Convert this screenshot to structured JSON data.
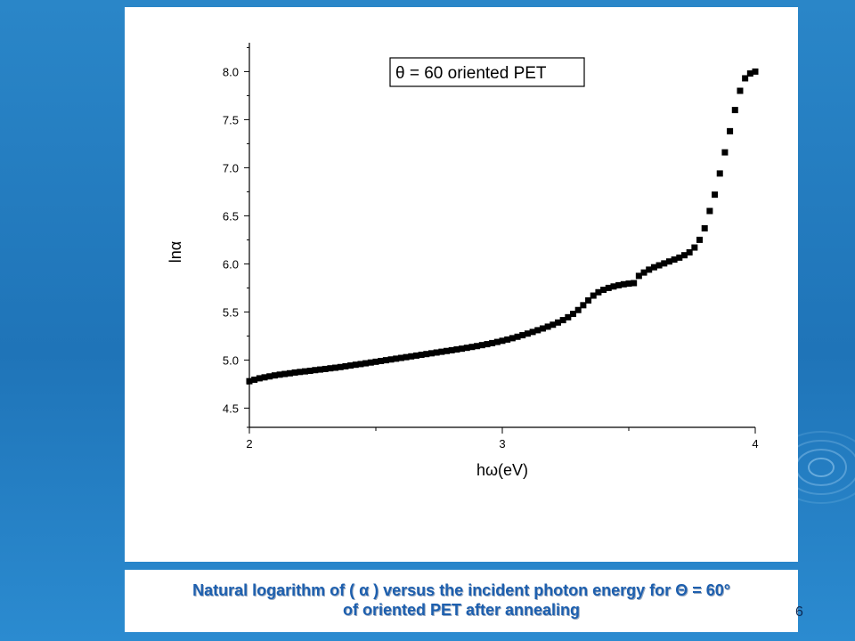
{
  "slide": {
    "number": "6",
    "caption_line1": "Natural logarithm of ( α ) versus the incident photon energy for Θ = 60°",
    "caption_line2": "of oriented PET after annealing"
  },
  "colors": {
    "background": "#2a86c8",
    "caption_text": "#1d5fae",
    "data_points": "#000000"
  },
  "chart_data": {
    "type": "scatter",
    "xlabel": "hω(eV)",
    "ylabel": "lnα",
    "xlim": [
      2,
      4
    ],
    "ylim": [
      4.3,
      8.3
    ],
    "x_ticks": [
      "2",
      "3",
      "4"
    ],
    "y_ticks": [
      "4.5",
      "5.0",
      "5.5",
      "6.0",
      "6.5",
      "7.0",
      "7.5",
      "8.0"
    ],
    "legend": {
      "label": "θ = 60 oriented PET",
      "placement": "top-center"
    },
    "grid": false,
    "series": [
      {
        "marker": "square",
        "x": [
          2.0,
          2.02,
          2.04,
          2.06,
          2.08,
          2.1,
          2.12,
          2.14,
          2.16,
          2.18,
          2.2,
          2.22,
          2.24,
          2.26,
          2.28,
          2.3,
          2.32,
          2.34,
          2.36,
          2.38,
          2.4,
          2.42,
          2.44,
          2.46,
          2.48,
          2.5,
          2.52,
          2.54,
          2.56,
          2.58,
          2.6,
          2.62,
          2.64,
          2.66,
          2.68,
          2.7,
          2.72,
          2.74,
          2.76,
          2.78,
          2.8,
          2.82,
          2.84,
          2.86,
          2.88,
          2.9,
          2.92,
          2.94,
          2.96,
          2.98,
          3.0,
          3.02,
          3.04,
          3.06,
          3.08,
          3.1,
          3.12,
          3.14,
          3.16,
          3.18,
          3.2,
          3.22,
          3.24,
          3.26,
          3.28,
          3.3,
          3.32,
          3.34,
          3.36,
          3.38,
          3.4,
          3.42,
          3.44,
          3.46,
          3.48,
          3.5,
          3.52,
          3.54,
          3.56,
          3.58,
          3.6,
          3.62,
          3.64,
          3.66,
          3.68,
          3.7,
          3.72,
          3.74,
          3.76,
          3.78,
          3.8,
          3.82,
          3.84,
          3.86,
          3.88,
          3.9,
          3.92,
          3.94,
          3.96,
          3.98,
          4.0
        ],
        "y": [
          4.78,
          4.795,
          4.81,
          4.82,
          4.83,
          4.84,
          4.848,
          4.855,
          4.862,
          4.87,
          4.876,
          4.882,
          4.888,
          4.895,
          4.901,
          4.907,
          4.914,
          4.92,
          4.927,
          4.935,
          4.943,
          4.951,
          4.958,
          4.966,
          4.974,
          4.982,
          4.99,
          4.998,
          5.006,
          5.014,
          5.022,
          5.03,
          5.038,
          5.046,
          5.054,
          5.062,
          5.07,
          5.078,
          5.086,
          5.094,
          5.102,
          5.11,
          5.118,
          5.127,
          5.136,
          5.145,
          5.155,
          5.165,
          5.176,
          5.188,
          5.2,
          5.213,
          5.227,
          5.242,
          5.258,
          5.275,
          5.292,
          5.31,
          5.328,
          5.347,
          5.367,
          5.39,
          5.415,
          5.445,
          5.48,
          5.52,
          5.57,
          5.62,
          5.67,
          5.705,
          5.73,
          5.75,
          5.765,
          5.778,
          5.788,
          5.795,
          5.8,
          5.875,
          5.91,
          5.94,
          5.965,
          5.985,
          6.005,
          6.025,
          6.045,
          6.065,
          6.09,
          6.12,
          6.17,
          6.25,
          6.37,
          6.55,
          6.72,
          6.94,
          7.16,
          7.38,
          7.6,
          7.8,
          7.93,
          7.98,
          8.0
        ]
      }
    ]
  }
}
